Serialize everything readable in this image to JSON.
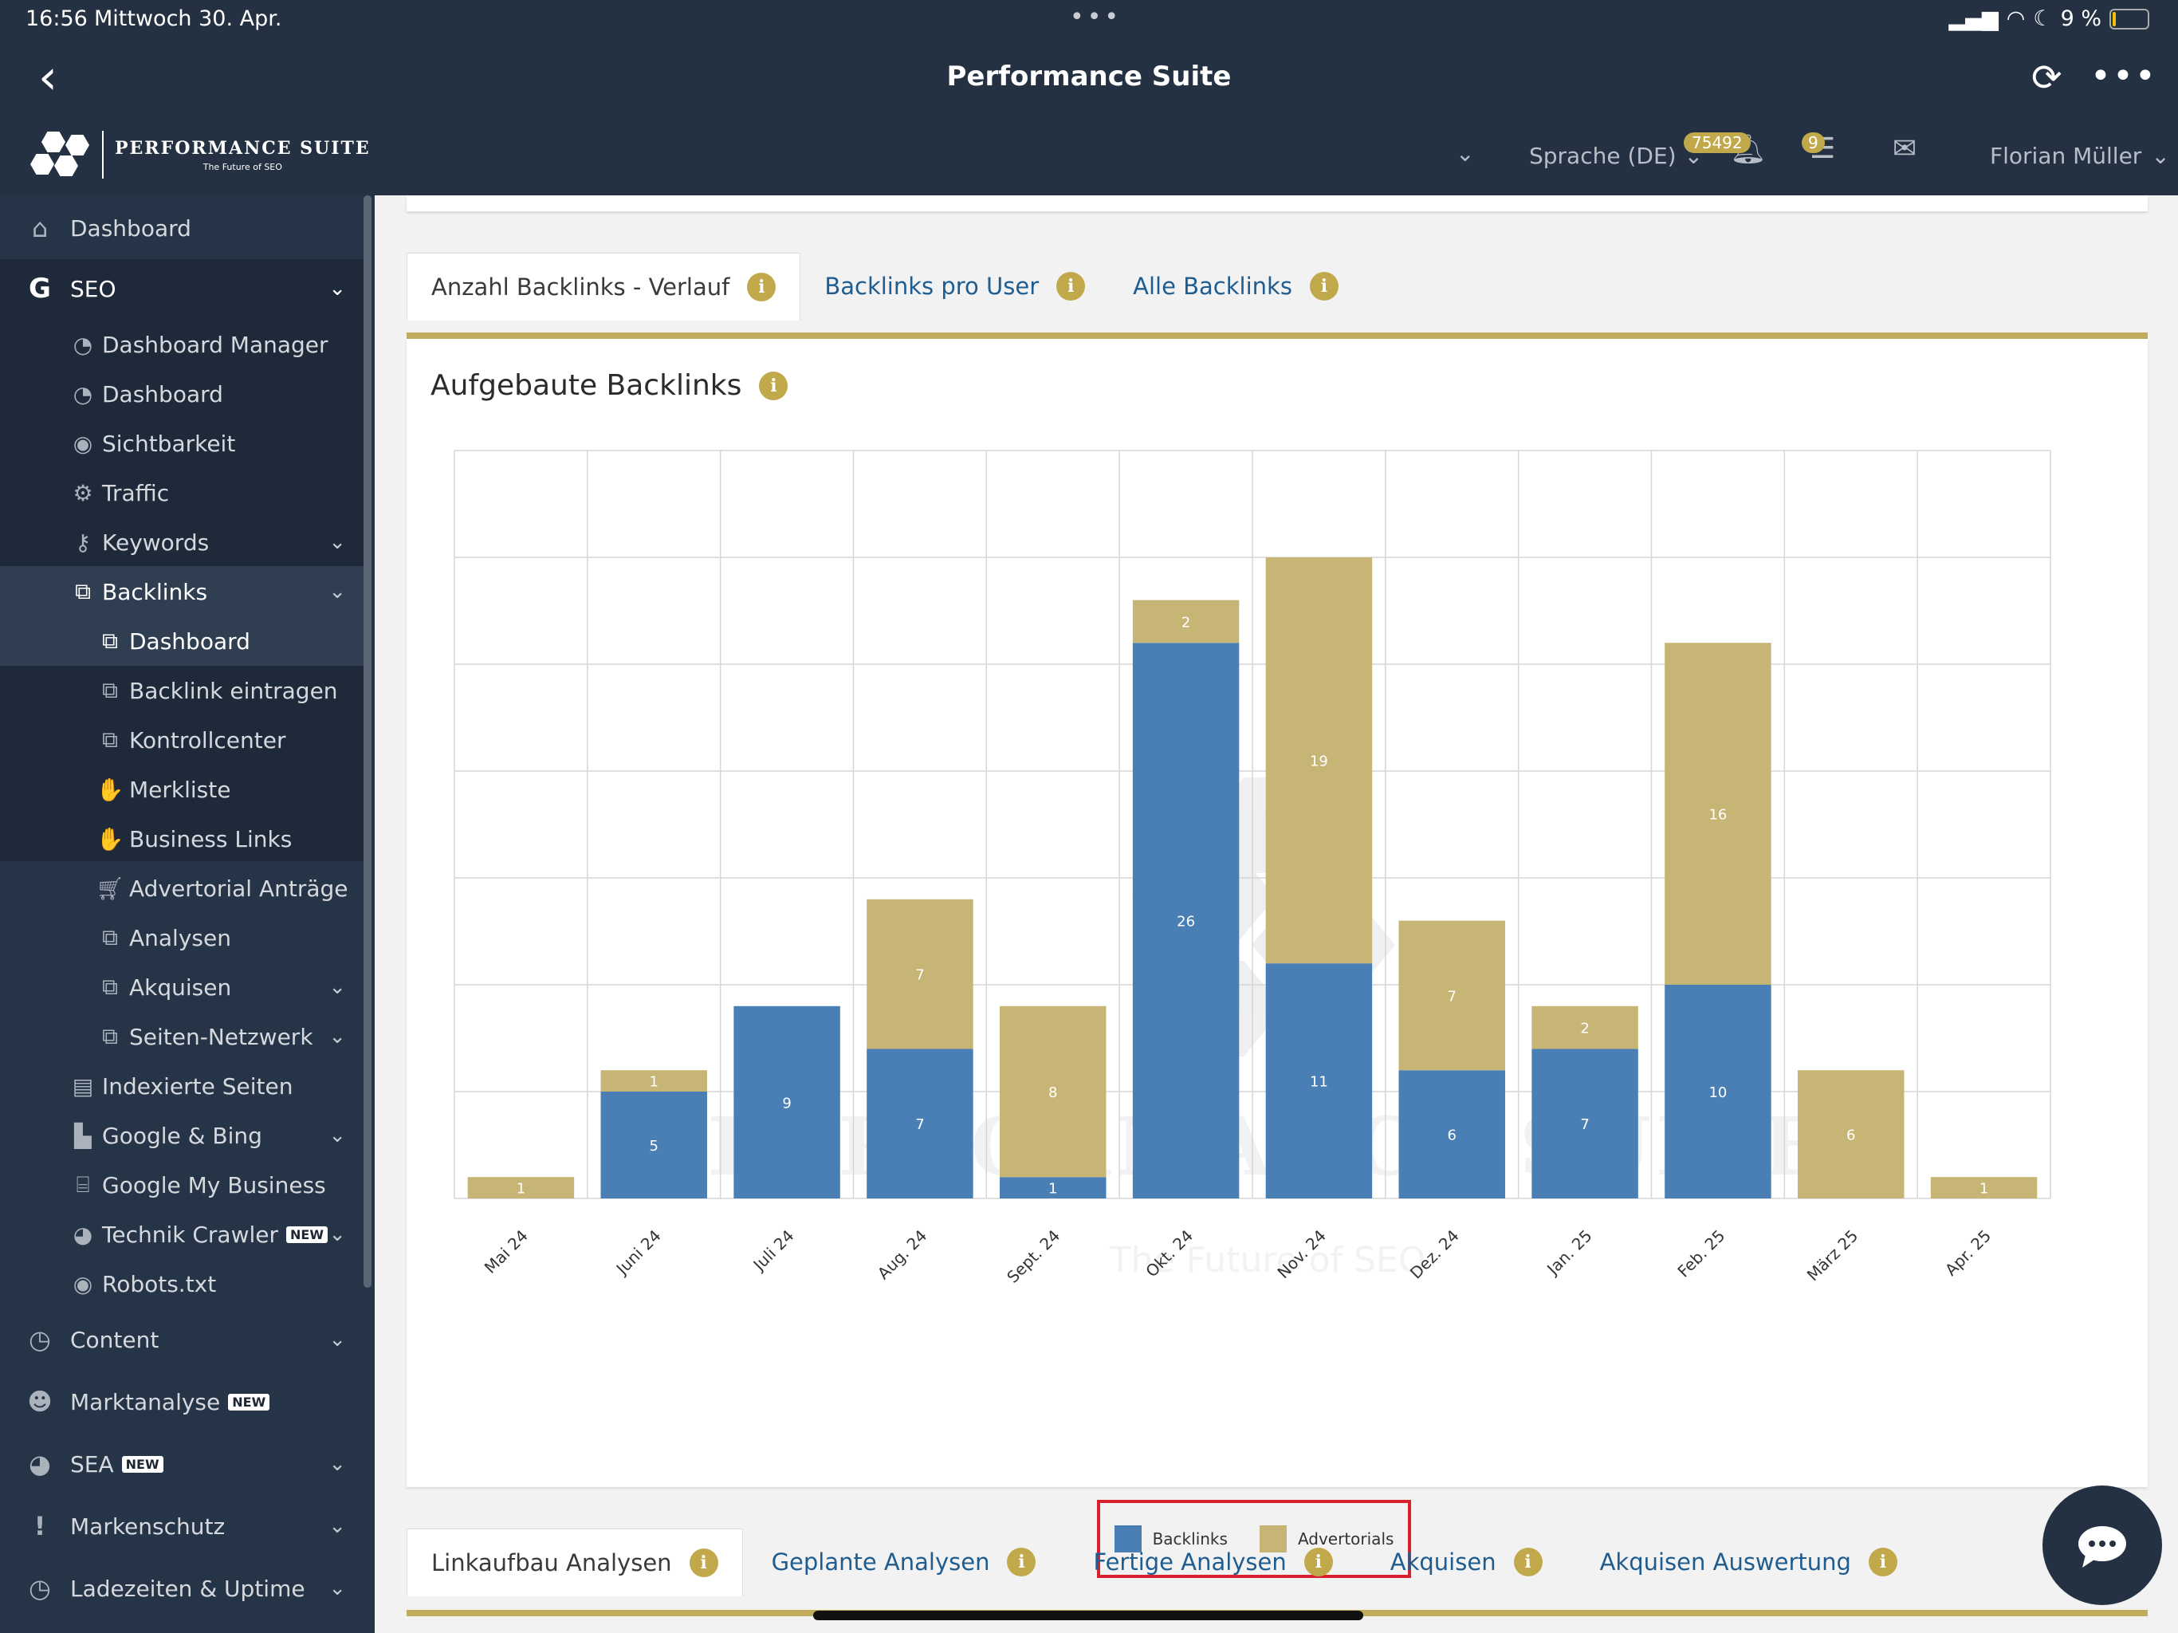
{
  "status_bar": {
    "time": "16:56",
    "date": "Mittwoch 30. Apr.",
    "dots": "•••",
    "battery": "9 %"
  },
  "app": {
    "title": "Performance Suite",
    "back": "‹",
    "reload": "⟳",
    "more": "•••"
  },
  "header": {
    "logo_name": "PERFORMANCE SUITE",
    "logo_sub": "The Future of SEO",
    "language": "Sprache (DE)",
    "notifications_count": "75492",
    "tasks_count": "9",
    "user_name": "Florian Müller"
  },
  "sidebar": {
    "dashboard": "Dashboard",
    "seo": "SEO",
    "seo_items": {
      "dashboard_manager": "Dashboard Manager",
      "dashboard": "Dashboard",
      "sichtbarkeit": "Sichtbarkeit",
      "traffic": "Traffic",
      "keywords": "Keywords",
      "backlinks": "Backlinks",
      "bl_dashboard": "Dashboard",
      "bl_eintragen": "Backlink eintragen",
      "bl_kontrollcenter": "Kontrollcenter",
      "bl_merkliste": "Merkliste",
      "bl_business": "Business Links",
      "bl_advertorial": "Advertorial Anträge",
      "bl_analysen": "Analysen",
      "bl_akquisen": "Akquisen",
      "bl_netzwerk": "Seiten-Netzwerk",
      "indexierte": "Indexierte Seiten",
      "google_bing": "Google & Bing",
      "google_my_business": "Google My Business",
      "technik_crawler": "Technik Crawler",
      "robots": "Robots.txt"
    },
    "content": "Content",
    "marktanalyse": "Marktanalyse",
    "sea": "SEA",
    "markenschutz": "Markenschutz",
    "ladezeiten": "Ladezeiten & Uptime",
    "new_tag": "NEW"
  },
  "tabs_top": [
    "Anzahl Backlinks - Verlauf",
    "Backlinks pro User",
    "Alle Backlinks"
  ],
  "card": {
    "title": "Aufgebaute Backlinks",
    "watermark": "PERFORMANCE SUITE",
    "watermark_sub": "The Future of SEO"
  },
  "tabs_bottom": [
    "Linkaufbau Analysen",
    "Geplante Analysen",
    "Fertige Analysen",
    "Akquisen",
    "Akquisen Auswertung"
  ],
  "colors": {
    "backlinks": "#4a7fb5",
    "advertorials": "#c6b574",
    "gold": "#c1a84a",
    "navy": "#243142"
  },
  "chart_data": {
    "type": "bar",
    "stacked": true,
    "title": "Aufgebaute Backlinks",
    "categories": [
      "Mai 24",
      "Juni 24",
      "Juli 24",
      "Aug. 24",
      "Sept. 24",
      "Okt. 24",
      "Nov. 24",
      "Dez. 24",
      "Jan. 25",
      "Feb. 25",
      "März 25",
      "Apr. 25"
    ],
    "series": [
      {
        "name": "Backlinks",
        "values": [
          0,
          5,
          9,
          7,
          1,
          26,
          11,
          6,
          7,
          10,
          0,
          0
        ]
      },
      {
        "name": "Advertorials",
        "values": [
          1,
          1,
          0,
          7,
          8,
          2,
          19,
          7,
          2,
          16,
          6,
          1
        ]
      }
    ],
    "ylim": [
      0,
      35
    ],
    "y_gridlines": [
      0,
      5,
      10,
      15,
      20,
      25,
      30,
      35
    ],
    "grid": true,
    "legend_position": "bottom-center",
    "xlabel": "",
    "ylabel": ""
  }
}
